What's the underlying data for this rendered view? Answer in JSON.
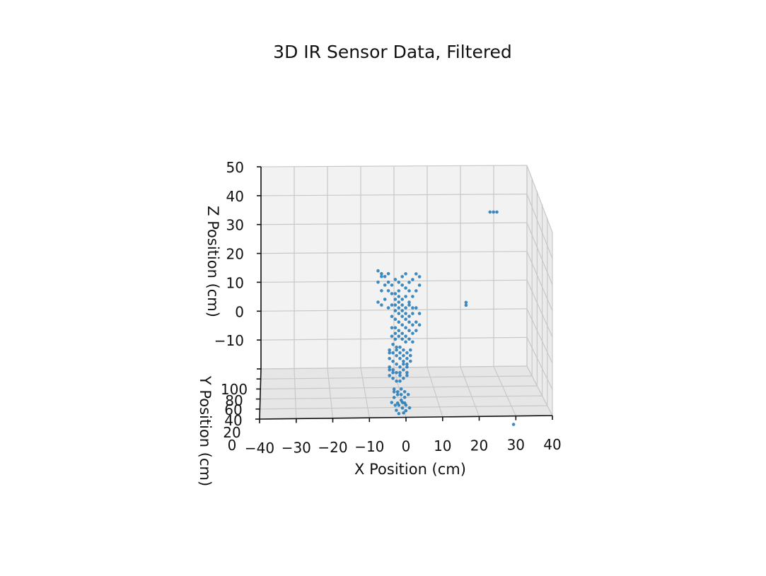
{
  "chart_data": {
    "type": "scatter",
    "projection": "3d",
    "title": "3D IR Sensor Data, Filtered",
    "xlabel": "X Position (cm)",
    "ylabel": "Y Position (cm)",
    "zlabel": "Z Position (cm)",
    "xlim": [
      -40,
      40
    ],
    "ylim": [
      0,
      100
    ],
    "zlim": [
      -20,
      50
    ],
    "xticks": [
      "−40",
      "−30",
      "−20",
      "−10",
      "0",
      "10",
      "20",
      "30",
      "40"
    ],
    "yticks": [
      "0",
      "20",
      "40",
      "60",
      "80",
      "100"
    ],
    "zticks": [
      "−10",
      "0",
      "10",
      "20",
      "30",
      "40",
      "50"
    ],
    "grid": true,
    "marker_color": "#1f77b4",
    "series": [
      {
        "points": [
          [
            -6,
            60,
            21
          ],
          [
            -5,
            60,
            20
          ],
          [
            -4,
            60,
            19
          ],
          [
            -6,
            60,
            17
          ],
          [
            -5,
            60,
            14
          ],
          [
            -4,
            60,
            11
          ],
          [
            -6,
            60,
            10
          ],
          [
            -5,
            60,
            9
          ],
          [
            -3,
            60,
            17
          ],
          [
            -2,
            60,
            16
          ],
          [
            -1,
            60,
            18
          ],
          [
            0,
            60,
            17
          ],
          [
            1,
            60,
            16
          ],
          [
            2,
            60,
            15
          ],
          [
            3,
            60,
            17
          ],
          [
            4,
            60,
            18
          ],
          [
            5,
            60,
            20
          ],
          [
            6,
            60,
            19
          ],
          [
            6,
            60,
            16
          ],
          [
            5,
            60,
            14
          ],
          [
            4,
            60,
            12
          ],
          [
            3,
            60,
            10
          ],
          [
            5,
            60,
            8
          ],
          [
            6,
            60,
            6
          ],
          [
            -3,
            60,
            14
          ],
          [
            -2,
            60,
            13
          ],
          [
            -1,
            60,
            11
          ],
          [
            0,
            60,
            10
          ],
          [
            1,
            60,
            9
          ],
          [
            2,
            60,
            12
          ],
          [
            3,
            60,
            14
          ],
          [
            4,
            60,
            6
          ],
          [
            -1,
            60,
            7
          ],
          [
            0,
            60,
            6
          ],
          [
            1,
            60,
            5
          ],
          [
            2,
            60,
            4
          ],
          [
            3,
            60,
            3
          ],
          [
            4,
            60,
            2
          ],
          [
            5,
            60,
            3
          ],
          [
            6,
            60,
            2
          ],
          [
            -2,
            60,
            5
          ],
          [
            -1,
            60,
            4
          ],
          [
            0,
            60,
            3
          ],
          [
            1,
            60,
            2
          ],
          [
            2,
            60,
            1
          ],
          [
            3,
            60,
            0
          ],
          [
            4,
            60,
            -1
          ],
          [
            5,
            60,
            0
          ],
          [
            -1,
            60,
            1
          ],
          [
            0,
            60,
            0
          ],
          [
            1,
            60,
            -1
          ],
          [
            2,
            60,
            -2
          ],
          [
            3,
            60,
            -3
          ],
          [
            4,
            60,
            -4
          ],
          [
            -2,
            60,
            -2
          ],
          [
            -1,
            60,
            -3
          ],
          [
            -3,
            50,
            -5
          ],
          [
            -2,
            50,
            -6
          ],
          [
            -1,
            50,
            -7
          ],
          [
            0,
            50,
            -8
          ],
          [
            1,
            50,
            -9
          ],
          [
            2,
            50,
            -10
          ],
          [
            -3,
            50,
            -11
          ],
          [
            -2,
            50,
            -12
          ],
          [
            -1,
            50,
            -5
          ],
          [
            0,
            50,
            -6
          ],
          [
            1,
            50,
            -7
          ],
          [
            2,
            50,
            -8
          ],
          [
            3,
            50,
            -9
          ],
          [
            -3,
            50,
            -8
          ],
          [
            -2,
            50,
            -9
          ],
          [
            -1,
            50,
            -10
          ],
          [
            0,
            50,
            -11
          ],
          [
            1,
            50,
            -12
          ],
          [
            2,
            50,
            -13
          ],
          [
            -3,
            50,
            -14
          ],
          [
            -2,
            50,
            -15
          ],
          [
            -1,
            50,
            -16
          ],
          [
            0,
            50,
            -14
          ],
          [
            1,
            50,
            -15
          ],
          [
            -2,
            40,
            -17
          ],
          [
            -1,
            40,
            -18
          ],
          [
            0,
            40,
            -19
          ],
          [
            1,
            40,
            -20
          ],
          [
            -2,
            40,
            -20
          ],
          [
            0,
            40,
            -21
          ],
          [
            1,
            40,
            -22
          ],
          [
            -1,
            40,
            -22
          ],
          [
            -3,
            30,
            -20
          ],
          [
            -2,
            30,
            -21
          ],
          [
            0,
            30,
            -22
          ],
          [
            1,
            30,
            -23
          ],
          [
            2,
            30,
            -22
          ],
          [
            -1,
            30,
            -24
          ],
          [
            -2,
            20,
            -21
          ],
          [
            0,
            20,
            -22
          ],
          [
            -5,
            60,
            19
          ],
          [
            -4,
            60,
            16
          ],
          [
            -3,
            60,
            20
          ],
          [
            2,
            60,
            20
          ],
          [
            1,
            60,
            19
          ],
          [
            0,
            60,
            14
          ],
          [
            -1,
            60,
            9
          ],
          [
            2,
            60,
            8
          ],
          [
            0,
            60,
            12
          ],
          [
            1,
            60,
            11
          ],
          [
            -1,
            60,
            13
          ],
          [
            3,
            60,
            9
          ],
          [
            4,
            60,
            8
          ],
          [
            -2,
            60,
            9
          ],
          [
            -3,
            60,
            8
          ],
          [
            -2,
            60,
            1
          ],
          [
            3,
            60,
            5
          ],
          [
            2,
            60,
            6
          ],
          [
            1,
            60,
            7
          ],
          [
            0,
            60,
            8
          ],
          [
            -1,
            60,
            -1
          ],
          [
            0,
            60,
            -2
          ],
          [
            1,
            60,
            -3
          ],
          [
            2,
            60,
            -4
          ],
          [
            -2,
            50,
            -3
          ],
          [
            -1,
            50,
            -4
          ],
          [
            0,
            50,
            -4
          ],
          [
            1,
            50,
            -5
          ],
          [
            2,
            50,
            -6
          ],
          [
            3,
            50,
            -5
          ],
          [
            -3,
            50,
            -6
          ],
          [
            3,
            50,
            -7
          ],
          [
            -1,
            50,
            -13
          ],
          [
            0,
            50,
            -13
          ],
          [
            1,
            50,
            -10
          ],
          [
            2,
            50,
            -11
          ],
          [
            -3,
            50,
            -12
          ],
          [
            -2,
            50,
            -13
          ],
          [
            2,
            50,
            -14
          ],
          [
            0,
            50,
            -16
          ],
          [
            -1,
            40,
            -19
          ],
          [
            0,
            40,
            -17
          ],
          [
            1,
            40,
            -18
          ],
          [
            -2,
            40,
            -18
          ],
          [
            2,
            40,
            -19
          ],
          [
            0,
            30,
            -20
          ],
          [
            1,
            30,
            -21
          ],
          [
            -1,
            30,
            -21
          ],
          [
            27,
            70,
            40
          ],
          [
            28,
            70,
            40
          ],
          [
            29,
            70,
            40
          ],
          [
            20,
            70,
            8
          ],
          [
            20,
            70,
            7
          ],
          [
            30,
            10,
            -25
          ]
        ]
      }
    ]
  }
}
